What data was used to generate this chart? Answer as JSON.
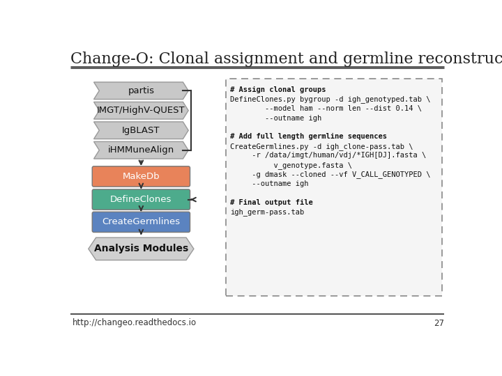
{
  "title": "Change-O: Clonal assignment and germline reconstruction",
  "title_fontsize": 16,
  "footer_url": "http://changeo.readthedocs.io",
  "footer_page": "27",
  "bg_color": "#ffffff",
  "code_text": [
    "# Assign clonal groups",
    "DefineClones.py bygroup -d igh_genotyped.tab \\",
    "        --model ham --norm len --dist 0.14 \\",
    "        --outname igh",
    "",
    "# Add full length germline sequences",
    "CreateGermlines.py -d igh_clone-pass.tab \\",
    "     -r /data/imgt/human/vdj/*IGH[DJ].fasta \\",
    "          v_genotype.fasta \\",
    "     -g dmask --cloned --vf V_CALL_GENOTYPED \\",
    "     --outname igh",
    "",
    "# Final output file",
    "igh_germ-pass.tab"
  ],
  "gray_boxes": [
    {
      "label": "partis"
    },
    {
      "label": "IMGT/HighV-QUEST"
    },
    {
      "label": "IgBLAST"
    },
    {
      "label": "iHMMuneAlign"
    }
  ],
  "color_boxes": [
    {
      "label": "MakeDb",
      "color": "#e8835a"
    },
    {
      "label": "DefineClones",
      "color": "#4dab8c"
    },
    {
      "label": "CreateGermlines",
      "color": "#5b83c0"
    }
  ],
  "analysis_label": "Analysis Modules",
  "gray_color": "#c8c8c8",
  "gray_edge": "#999999",
  "color_edge": "#777777"
}
